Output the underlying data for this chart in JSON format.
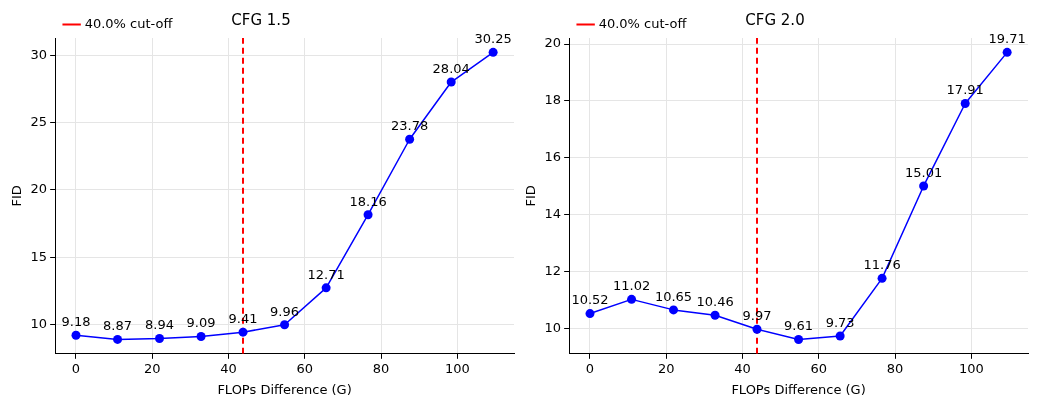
{
  "chart_data": [
    {
      "type": "line",
      "title": "CFG 1.5",
      "xlabel": "FLOPs Difference (G)",
      "ylabel": "FID",
      "x": [
        0,
        10.9,
        21.9,
        32.8,
        43.8,
        54.7,
        65.6,
        76.6,
        87.5,
        98.4,
        109.4
      ],
      "series": [
        {
          "color": "#0000ff",
          "values": [
            9.18,
            8.87,
            8.94,
            9.09,
            9.41,
            9.96,
            12.71,
            18.16,
            23.78,
            28.04,
            30.25
          ]
        }
      ],
      "xlim": [
        -5.47,
        114.87
      ],
      "xticks": [
        0,
        20,
        40,
        60,
        80,
        100
      ],
      "ylim": [
        7.8,
        31.32
      ],
      "yticks": [
        10,
        15,
        20,
        25,
        30
      ],
      "ref_lines": [
        {
          "axis": "x",
          "value": 43.8,
          "label": "40.0% cut-off",
          "color": "#ff0000",
          "line_style": "dashed"
        }
      ],
      "grid": true,
      "legend": "top left",
      "marker": "circle",
      "line_style": "solid",
      "data_labels": true
    },
    {
      "type": "line",
      "title": "CFG 2.0",
      "xlabel": "FLOPs Difference (G)",
      "ylabel": "FID",
      "x": [
        0,
        10.9,
        21.9,
        32.8,
        43.8,
        54.7,
        65.6,
        76.6,
        87.5,
        98.4,
        109.4
      ],
      "series": [
        {
          "color": "#0000ff",
          "values": [
            10.52,
            11.02,
            10.65,
            10.46,
            9.97,
            9.61,
            9.73,
            11.76,
            15.01,
            17.91,
            19.71
          ]
        }
      ],
      "xlim": [
        -5.47,
        114.87
      ],
      "xticks": [
        0,
        20,
        40,
        60,
        80,
        100
      ],
      "ylim": [
        9.105,
        20.215
      ],
      "yticks": [
        10,
        12,
        14,
        16,
        18,
        20
      ],
      "ref_lines": [
        {
          "axis": "x",
          "value": 43.8,
          "label": "40.0% cut-off",
          "color": "#ff0000",
          "line_style": "dashed"
        }
      ],
      "grid": true,
      "legend": "top left",
      "marker": "circle",
      "line_style": "solid",
      "data_labels": true
    }
  ]
}
